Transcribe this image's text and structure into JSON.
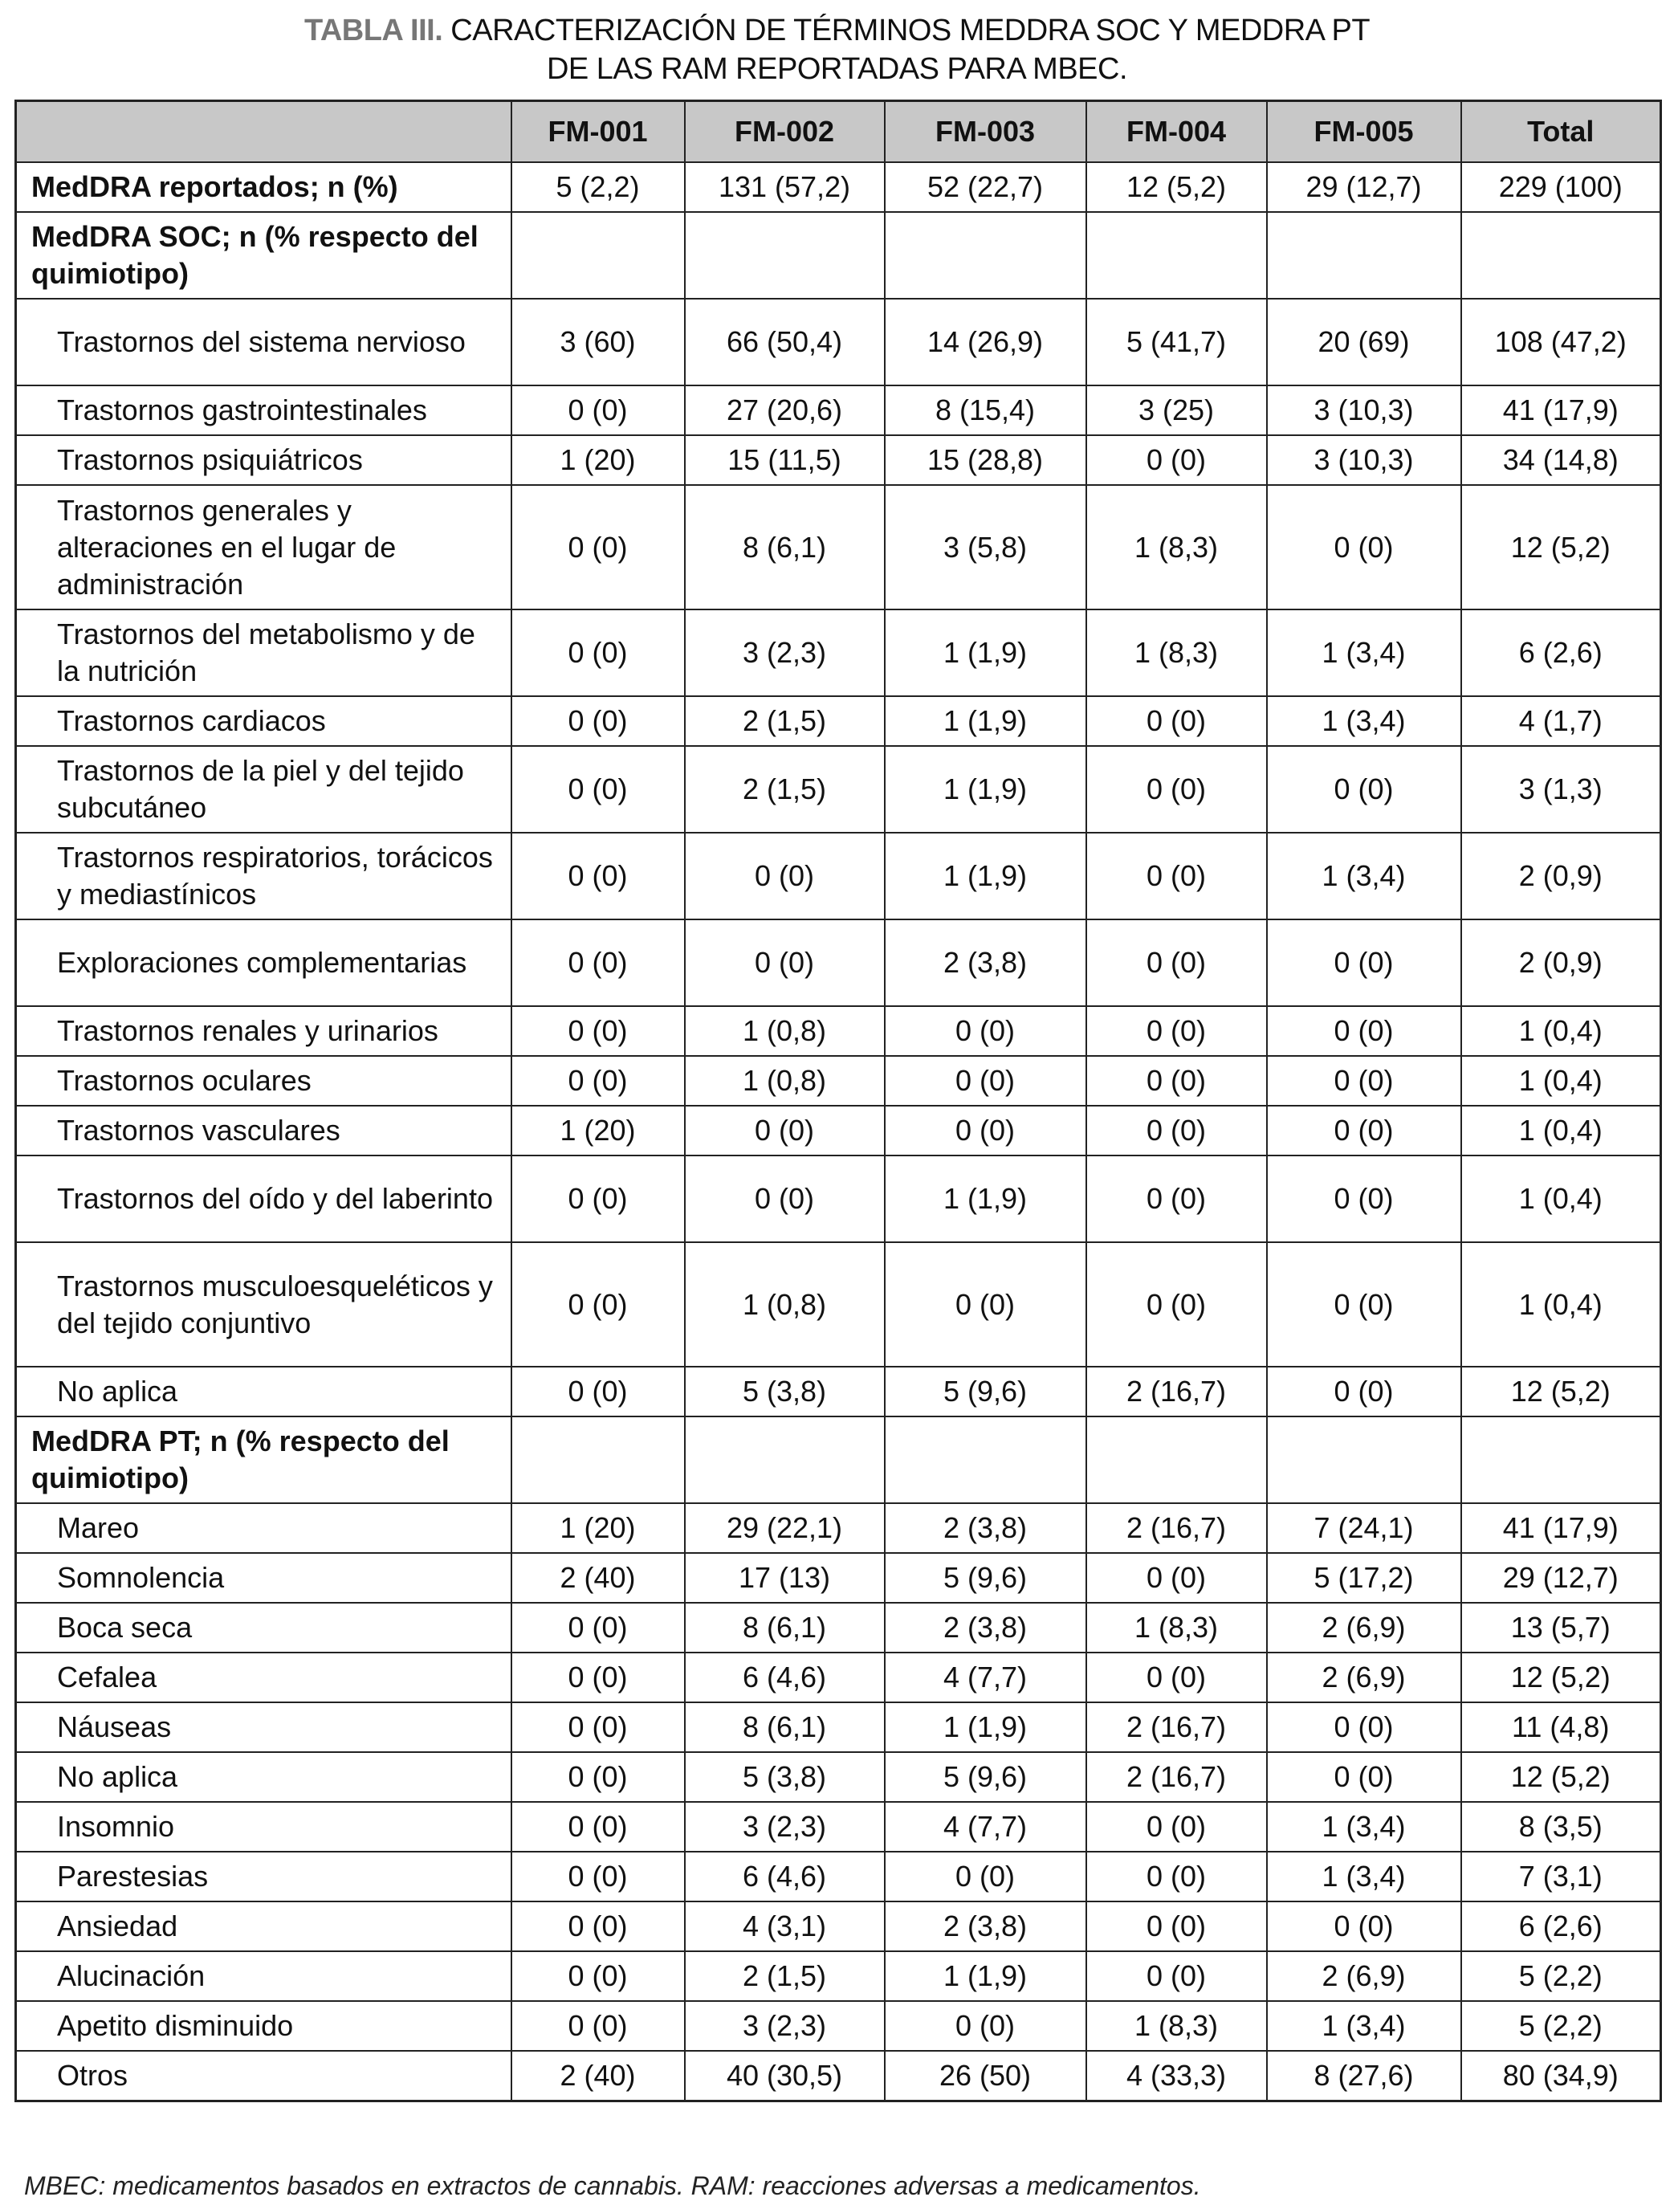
{
  "title": {
    "lead": "TABLA III.",
    "line1": " CARACTERIZACIÓN DE TÉRMINOS MEDDRA SOC Y MEDDRA PT",
    "line2": "DE LAS RAM REPORTADAS PARA MBEC."
  },
  "columns": [
    "",
    "FM-001",
    "FM-002",
    "FM-003",
    "FM-004",
    "FM-005",
    "Total"
  ],
  "rows": [
    {
      "label": "MedDRA reportados; n (%)",
      "kind": "section",
      "lines": 1,
      "values": [
        "5 (2,2)",
        "131 (57,2)",
        "52 (22,7)",
        "12 (5,2)",
        "29 (12,7)",
        "229 (100)"
      ]
    },
    {
      "label": "MedDRA SOC; n (% respecto del quimiotipo)",
      "kind": "section",
      "lines": 2,
      "values": [
        "",
        "",
        "",
        "",
        "",
        ""
      ]
    },
    {
      "label": "Trastornos del sistema nervioso",
      "kind": "sub",
      "lines": 2,
      "values": [
        "3 (60)",
        "66 (50,4)",
        "14 (26,9)",
        "5 (41,7)",
        "20 (69)",
        "108 (47,2)"
      ]
    },
    {
      "label": "Trastornos gastrointestinales",
      "kind": "sub",
      "lines": 1,
      "values": [
        "0 (0)",
        "27 (20,6)",
        "8 (15,4)",
        "3 (25)",
        "3 (10,3)",
        "41 (17,9)"
      ]
    },
    {
      "label": "Trastornos psiquiátricos",
      "kind": "sub",
      "lines": 1,
      "values": [
        "1 (20)",
        "15 (11,5)",
        "15 (28,8)",
        "0 (0)",
        "3 (10,3)",
        "34 (14,8)"
      ]
    },
    {
      "label": "Trastornos generales y alteraciones en el lugar de administración",
      "kind": "sub",
      "lines": 3,
      "values": [
        "0 (0)",
        "8 (6,1)",
        "3 (5,8)",
        "1 (8,3)",
        "0 (0)",
        "12 (5,2)"
      ]
    },
    {
      "label": "Trastornos del metabolismo y de la nutrición",
      "kind": "sub",
      "lines": 2,
      "values": [
        "0 (0)",
        "3 (2,3)",
        "1 (1,9)",
        "1 (8,3)",
        "1 (3,4)",
        "6 (2,6)"
      ]
    },
    {
      "label": "Trastornos cardiacos",
      "kind": "sub",
      "lines": 1,
      "values": [
        "0 (0)",
        "2 (1,5)",
        "1 (1,9)",
        "0 (0)",
        "1 (3,4)",
        "4 (1,7)"
      ]
    },
    {
      "label": "Trastornos de la piel y del tejido subcutáneo",
      "kind": "sub",
      "lines": 2,
      "values": [
        "0 (0)",
        "2 (1,5)",
        "1 (1,9)",
        "0 (0)",
        "0 (0)",
        "3 (1,3)"
      ]
    },
    {
      "label": "Trastornos respiratorios, torácicos y mediastínicos",
      "kind": "sub",
      "lines": 2,
      "values": [
        "0 (0)",
        "0 (0)",
        "1 (1,9)",
        "0 (0)",
        "1 (3,4)",
        "2 (0,9)"
      ]
    },
    {
      "label": "Exploraciones complementarias",
      "kind": "sub",
      "lines": 2,
      "values": [
        "0 (0)",
        "0 (0)",
        "2 (3,8)",
        "0 (0)",
        "0 (0)",
        "2 (0,9)"
      ]
    },
    {
      "label": "Trastornos renales y urinarios",
      "kind": "sub",
      "lines": 1,
      "values": [
        "0 (0)",
        "1 (0,8)",
        "0 (0)",
        "0 (0)",
        "0 (0)",
        "1 (0,4)"
      ]
    },
    {
      "label": "Trastornos oculares",
      "kind": "sub",
      "lines": 1,
      "values": [
        "0 (0)",
        "1 (0,8)",
        "0 (0)",
        "0 (0)",
        "0 (0)",
        "1 (0,4)"
      ]
    },
    {
      "label": "Trastornos vasculares",
      "kind": "sub",
      "lines": 1,
      "values": [
        "1 (20)",
        "0 (0)",
        "0 (0)",
        "0 (0)",
        "0 (0)",
        "1 (0,4)"
      ]
    },
    {
      "label": "Trastornos del oído y del laberinto",
      "kind": "sub",
      "lines": 2,
      "values": [
        "0 (0)",
        "0 (0)",
        "1 (1,9)",
        "0 (0)",
        "0 (0)",
        "1 (0,4)"
      ]
    },
    {
      "label": "Trastornos musculoesqueléticos y del tejido conjuntivo",
      "kind": "sub",
      "lines": 3,
      "values": [
        "0 (0)",
        "1 (0,8)",
        "0 (0)",
        "0 (0)",
        "0 (0)",
        "1 (0,4)"
      ]
    },
    {
      "label": "No aplica",
      "kind": "sub",
      "lines": 1,
      "values": [
        "0 (0)",
        "5 (3,8)",
        "5 (9,6)",
        "2 (16,7)",
        "0 (0)",
        "12 (5,2)"
      ]
    },
    {
      "label": "MedDRA PT; n (% respecto del quimiotipo)",
      "kind": "section",
      "lines": 2,
      "values": [
        "",
        "",
        "",
        "",
        "",
        ""
      ]
    },
    {
      "label": "Mareo",
      "kind": "sub",
      "lines": 1,
      "values": [
        "1 (20)",
        "29 (22,1)",
        "2 (3,8)",
        "2 (16,7)",
        "7 (24,1)",
        "41 (17,9)"
      ]
    },
    {
      "label": "Somnolencia",
      "kind": "sub",
      "lines": 1,
      "values": [
        "2 (40)",
        "17 (13)",
        "5 (9,6)",
        "0 (0)",
        "5 (17,2)",
        "29 (12,7)"
      ]
    },
    {
      "label": "Boca seca",
      "kind": "sub",
      "lines": 1,
      "values": [
        "0 (0)",
        "8 (6,1)",
        "2 (3,8)",
        "1 (8,3)",
        "2 (6,9)",
        "13 (5,7)"
      ]
    },
    {
      "label": "Cefalea",
      "kind": "sub",
      "lines": 1,
      "values": [
        "0 (0)",
        "6 (4,6)",
        "4 (7,7)",
        "0 (0)",
        "2 (6,9)",
        "12 (5,2)"
      ]
    },
    {
      "label": "Náuseas",
      "kind": "sub",
      "lines": 1,
      "values": [
        "0 (0)",
        "8 (6,1)",
        "1 (1,9)",
        "2 (16,7)",
        "0 (0)",
        "11 (4,8)"
      ]
    },
    {
      "label": "No aplica",
      "kind": "sub",
      "lines": 1,
      "values": [
        "0 (0)",
        "5 (3,8)",
        "5 (9,6)",
        "2 (16,7)",
        "0 (0)",
        "12 (5,2)"
      ]
    },
    {
      "label": "Insomnio",
      "kind": "sub",
      "lines": 1,
      "values": [
        "0 (0)",
        "3 (2,3)",
        "4 (7,7)",
        "0 (0)",
        "1 (3,4)",
        "8 (3,5)"
      ]
    },
    {
      "label": "Parestesias",
      "kind": "sub",
      "lines": 1,
      "values": [
        "0 (0)",
        "6 (4,6)",
        "0 (0)",
        "0 (0)",
        "1 (3,4)",
        "7 (3,1)"
      ]
    },
    {
      "label": "Ansiedad",
      "kind": "sub",
      "lines": 1,
      "values": [
        "0 (0)",
        "4 (3,1)",
        "2 (3,8)",
        "0 (0)",
        "0 (0)",
        "6 (2,6)"
      ]
    },
    {
      "label": "Alucinación",
      "kind": "sub",
      "lines": 1,
      "values": [
        "0 (0)",
        "2 (1,5)",
        "1 (1,9)",
        "0 (0)",
        "2 (6,9)",
        "5 (2,2)"
      ]
    },
    {
      "label": "Apetito disminuido",
      "kind": "sub",
      "lines": 1,
      "values": [
        "0 (0)",
        "3 (2,3)",
        "0 (0)",
        "1 (8,3)",
        "1 (3,4)",
        "5 (2,2)"
      ]
    },
    {
      "label": "Otros",
      "kind": "sub",
      "lines": 1,
      "values": [
        "2 (40)",
        "40 (30,5)",
        "26 (50)",
        "4 (33,3)",
        "8 (27,6)",
        "80 (34,9)"
      ]
    }
  ],
  "footnote": "MBEC: medicamentos basados en extractos de cannabis. RAM: reacciones adversas a medicamentos.",
  "colors": {
    "header_bg": "#c8c8c8",
    "title_lead": "#777777"
  }
}
